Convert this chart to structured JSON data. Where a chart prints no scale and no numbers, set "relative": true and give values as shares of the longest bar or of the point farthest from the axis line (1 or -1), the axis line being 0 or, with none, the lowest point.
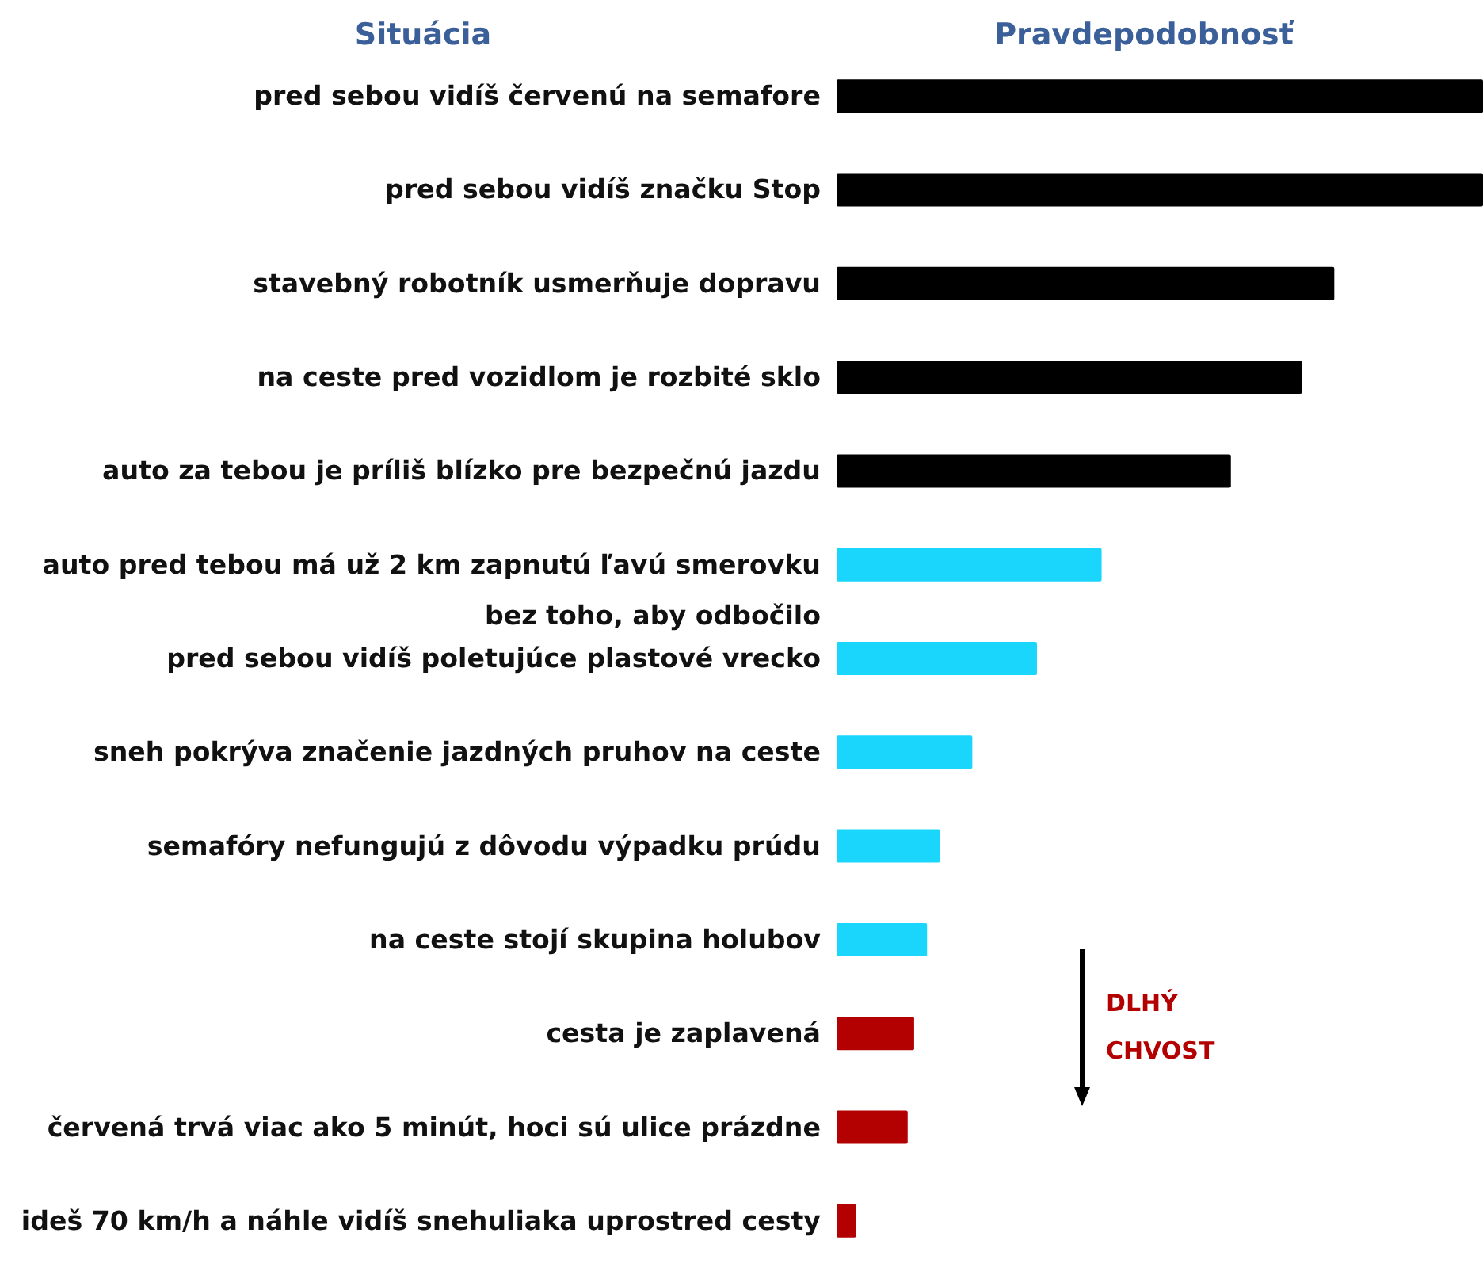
{
  "chart_data": {
    "type": "bar",
    "orientation": "horizontal",
    "relative": true,
    "ylabel": "Situácia",
    "xlabel": "Pravdepodobnosť",
    "categories": [
      "pred sebou vidíš červenú na semafore",
      "pred sebou vidíš značku Stop",
      "stavebný robotník usmerňuje dopravu",
      "na ceste pred vozidlom je rozbité sklo",
      "auto za tebou je príliš blízko pre bezpečnú jazdu",
      "auto pred tebou má už 2 km zapnutú ľavú smerovku\nbez toho, aby odbočilo",
      "pred sebou vidíš poletujúce plastové vrecko",
      "sneh pokrýva značenie jazdných pruhov na ceste",
      "semafóry nefungujú z dôvodu výpadku prúdu",
      "na ceste stojí skupina holubov",
      "cesta je zaplavená",
      "červená trvá viac ako 5 minút, hoci sú ulice prázdne",
      "ideš 70 km/h a náhle vidíš snehuliaka uprostred cesty"
    ],
    "values": [
      1,
      1,
      0.77,
      0.72,
      0.61,
      0.41,
      0.31,
      0.21,
      0.16,
      0.14,
      0.12,
      0.11,
      0.03
    ],
    "colors": [
      "#000000",
      "#000000",
      "#000000",
      "#000000",
      "#000000",
      "#1ad6fc",
      "#1ad6fc",
      "#1ad6fc",
      "#1ad6fc",
      "#1ad6fc",
      "#b30000",
      "#b30000",
      "#b30000"
    ],
    "annotations": [
      "DLHÝ\nCHVOST"
    ]
  }
}
